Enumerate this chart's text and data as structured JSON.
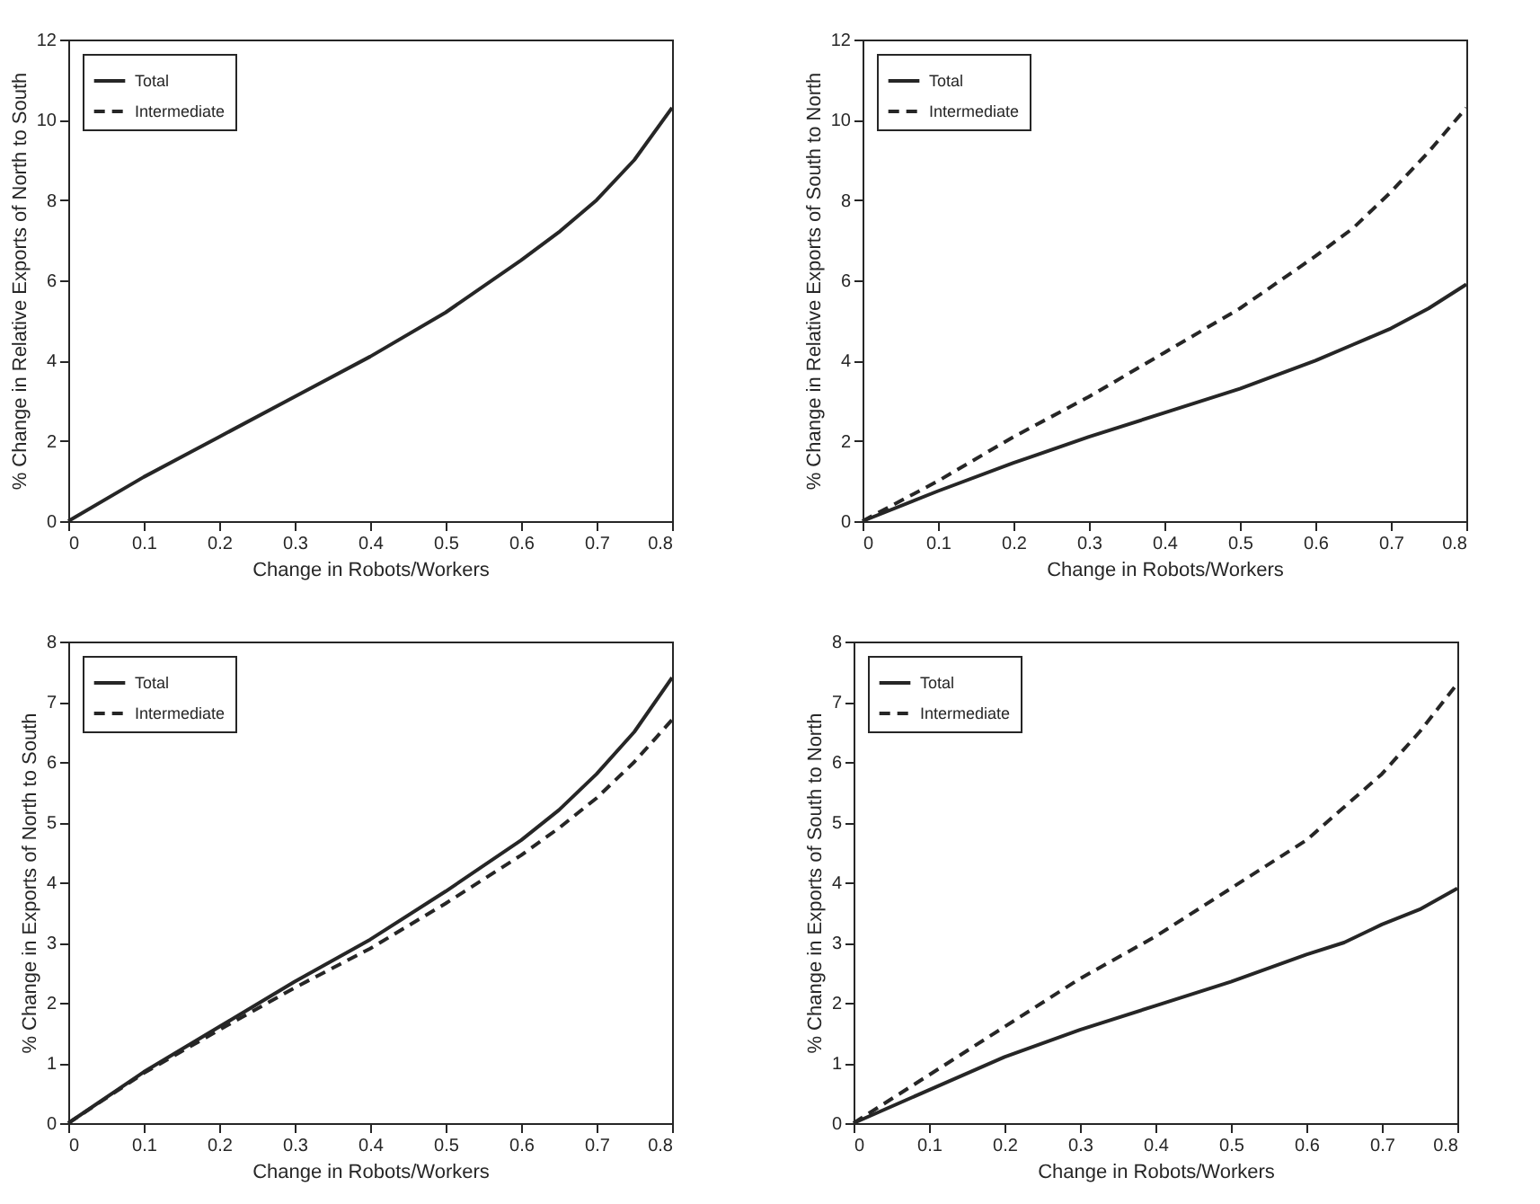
{
  "chart_data": [
    {
      "type": "line",
      "xlabel": "Change in Robots/Workers",
      "ylabel": "% Change in Relative Exports of North to South",
      "x": [
        0,
        0.1,
        0.2,
        0.3,
        0.4,
        0.5,
        0.6,
        0.65,
        0.7,
        0.75,
        0.8
      ],
      "xlim": [
        0,
        0.8
      ],
      "xticks": [
        0,
        0.1,
        0.2,
        0.3,
        0.4,
        0.5,
        0.6,
        0.7,
        0.8
      ],
      "ylim": [
        0,
        12
      ],
      "yticks": [
        0,
        2,
        4,
        6,
        8,
        10,
        12
      ],
      "legend": "top left",
      "series": [
        {
          "name": "Total",
          "color": "#262626",
          "line_style": "solid",
          "values": [
            0,
            1.1,
            2.1,
            3.1,
            4.1,
            5.2,
            6.5,
            7.2,
            8.0,
            9.0,
            10.3
          ]
        },
        {
          "name": "Intermediate",
          "color": "#262626",
          "line_style": "dashed",
          "values": [
            null,
            null,
            null,
            null,
            null,
            null,
            null,
            null,
            null,
            null,
            null
          ]
        }
      ]
    },
    {
      "type": "line",
      "xlabel": "Change in Robots/Workers",
      "ylabel": "% Change in Relative Exports of South to North",
      "x": [
        0,
        0.1,
        0.2,
        0.3,
        0.4,
        0.5,
        0.6,
        0.65,
        0.7,
        0.75,
        0.8
      ],
      "xlim": [
        0,
        0.8
      ],
      "xticks": [
        0,
        0.1,
        0.2,
        0.3,
        0.4,
        0.5,
        0.6,
        0.7,
        0.8
      ],
      "ylim": [
        0,
        12
      ],
      "yticks": [
        0,
        2,
        4,
        6,
        8,
        10,
        12
      ],
      "legend": "top left",
      "series": [
        {
          "name": "Total",
          "color": "#262626",
          "line_style": "solid",
          "values": [
            0,
            0.75,
            1.45,
            2.1,
            2.7,
            3.3,
            4.0,
            4.4,
            4.8,
            5.3,
            5.9
          ]
        },
        {
          "name": "Intermediate",
          "color": "#262626",
          "line_style": "dashed",
          "values": [
            0,
            1.0,
            2.1,
            3.1,
            4.2,
            5.3,
            6.6,
            7.3,
            8.2,
            9.2,
            10.3
          ]
        }
      ]
    },
    {
      "type": "line",
      "xlabel": "Change in Robots/Workers",
      "ylabel": "% Change in Exports of North to South",
      "x": [
        0,
        0.1,
        0.2,
        0.3,
        0.4,
        0.5,
        0.6,
        0.65,
        0.7,
        0.75,
        0.8
      ],
      "xlim": [
        0,
        0.8
      ],
      "xticks": [
        0,
        0.1,
        0.2,
        0.3,
        0.4,
        0.5,
        0.6,
        0.7,
        0.8
      ],
      "ylim": [
        0,
        8
      ],
      "yticks": [
        0,
        1,
        2,
        3,
        4,
        5,
        6,
        7,
        8
      ],
      "legend": "top left",
      "series": [
        {
          "name": "Total",
          "color": "#262626",
          "line_style": "solid",
          "values": [
            0,
            0.85,
            1.6,
            2.35,
            3.05,
            3.85,
            4.7,
            5.2,
            5.8,
            6.5,
            7.4
          ]
        },
        {
          "name": "Intermediate",
          "color": "#262626",
          "line_style": "dashed",
          "values": [
            0,
            0.83,
            1.55,
            2.25,
            2.9,
            3.65,
            4.45,
            4.9,
            5.4,
            6.0,
            6.7
          ]
        }
      ]
    },
    {
      "type": "line",
      "xlabel": "Change in Robots/Workers",
      "ylabel": "% Change in Exports of South to North",
      "x": [
        0,
        0.1,
        0.2,
        0.3,
        0.4,
        0.5,
        0.6,
        0.65,
        0.7,
        0.75,
        0.8
      ],
      "xlim": [
        0,
        0.8
      ],
      "xticks": [
        0,
        0.1,
        0.2,
        0.3,
        0.4,
        0.5,
        0.6,
        0.7,
        0.8
      ],
      "ylim": [
        0,
        8
      ],
      "yticks": [
        0,
        1,
        2,
        3,
        4,
        5,
        6,
        7,
        8
      ],
      "legend": "top left",
      "series": [
        {
          "name": "Total",
          "color": "#262626",
          "line_style": "solid",
          "values": [
            0,
            0.55,
            1.1,
            1.55,
            1.95,
            2.35,
            2.8,
            3.0,
            3.3,
            3.55,
            3.9
          ]
        },
        {
          "name": "Intermediate",
          "color": "#262626",
          "line_style": "dashed",
          "values": [
            0,
            0.8,
            1.6,
            2.4,
            3.1,
            3.9,
            4.7,
            5.25,
            5.8,
            6.5,
            7.3
          ]
        }
      ]
    }
  ]
}
